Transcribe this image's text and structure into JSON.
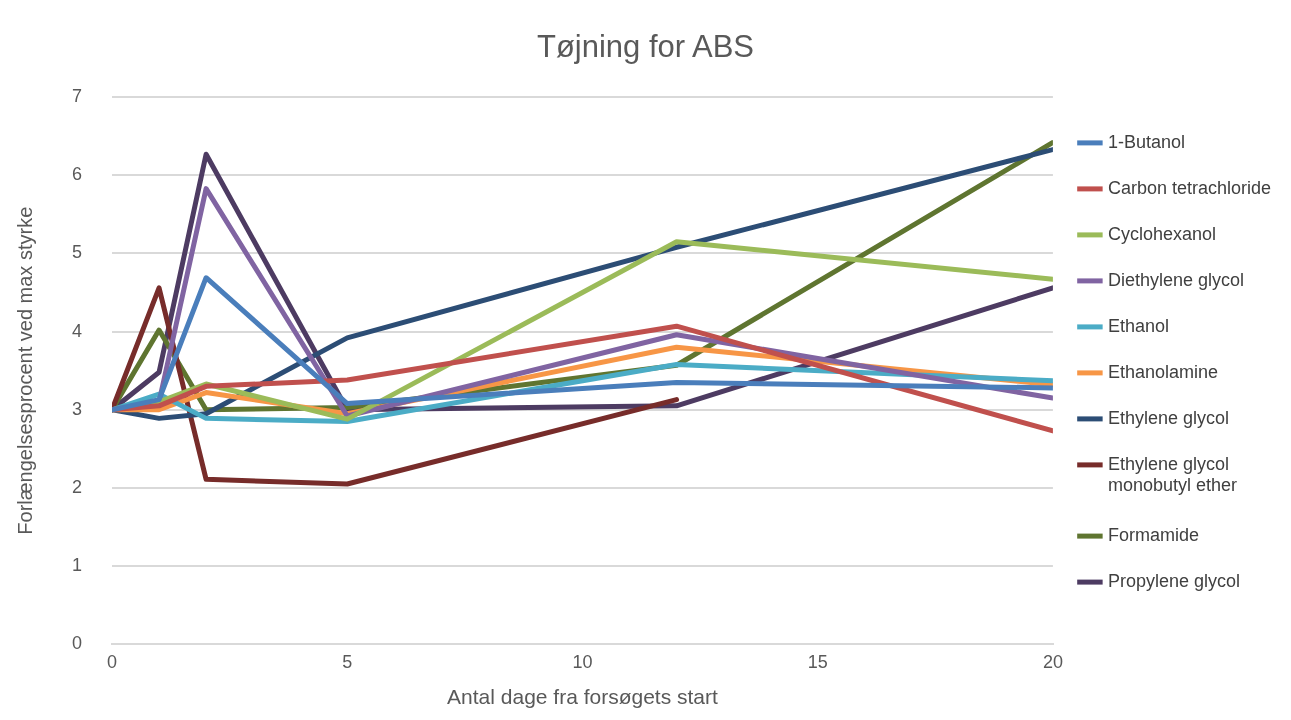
{
  "chart_data": {
    "type": "line",
    "title": "Tøjning for ABS",
    "xlabel": "Antal dage fra forsøgets start",
    "ylabel": "Forlængelsesprocent ved max styrke",
    "x": [
      0,
      1,
      2,
      5,
      12,
      20
    ],
    "series": [
      {
        "name": "1-Butanol",
        "color": "#4a7ebb",
        "values": [
          3.0,
          3.13,
          4.69,
          3.08,
          3.35,
          3.28
        ]
      },
      {
        "name": "Carbon tetrachloride",
        "color": "#c0504d",
        "values": [
          3.0,
          3.05,
          3.3,
          3.38,
          4.07,
          2.73
        ]
      },
      {
        "name": "Cyclohexanol",
        "color": "#9bbb59",
        "values": [
          3.0,
          3.1,
          3.33,
          2.88,
          5.15,
          4.67
        ]
      },
      {
        "name": "Diethylene glycol",
        "color": "#8064a2",
        "values": [
          3.0,
          3.1,
          5.83,
          2.92,
          3.96,
          3.15
        ]
      },
      {
        "name": "Ethanol",
        "color": "#4bacc6",
        "values": [
          3.0,
          3.2,
          2.89,
          2.85,
          3.58,
          3.37
        ]
      },
      {
        "name": "Ethanolamine",
        "color": "#f79646",
        "values": [
          3.0,
          3.0,
          3.22,
          2.95,
          3.8,
          3.32
        ]
      },
      {
        "name": "Ethylene glycol",
        "color": "#2c4d75",
        "values": [
          3.0,
          2.89,
          2.95,
          3.92,
          5.08,
          6.33
        ]
      },
      {
        "name": "Ethylene glycol monobutyl ether",
        "color": "#772c2a",
        "values": [
          3.0,
          4.56,
          2.11,
          2.05,
          3.13,
          null
        ]
      },
      {
        "name": "Formamide",
        "color": "#5f7530",
        "values": [
          3.0,
          4.02,
          3.0,
          3.03,
          3.57,
          6.42
        ]
      },
      {
        "name": "Propylene glycol",
        "color": "#4d3b62",
        "values": [
          3.0,
          3.48,
          6.27,
          3.0,
          3.05,
          4.56
        ]
      }
    ],
    "xlim": [
      0,
      20
    ],
    "xticks": [
      0,
      5,
      10,
      15,
      20
    ],
    "ylim": [
      0,
      7
    ],
    "yticks": [
      0,
      1,
      2,
      3,
      4,
      5,
      6,
      7
    ],
    "grid": "y",
    "legend": "right",
    "marker": "none",
    "line_style": "solid"
  }
}
